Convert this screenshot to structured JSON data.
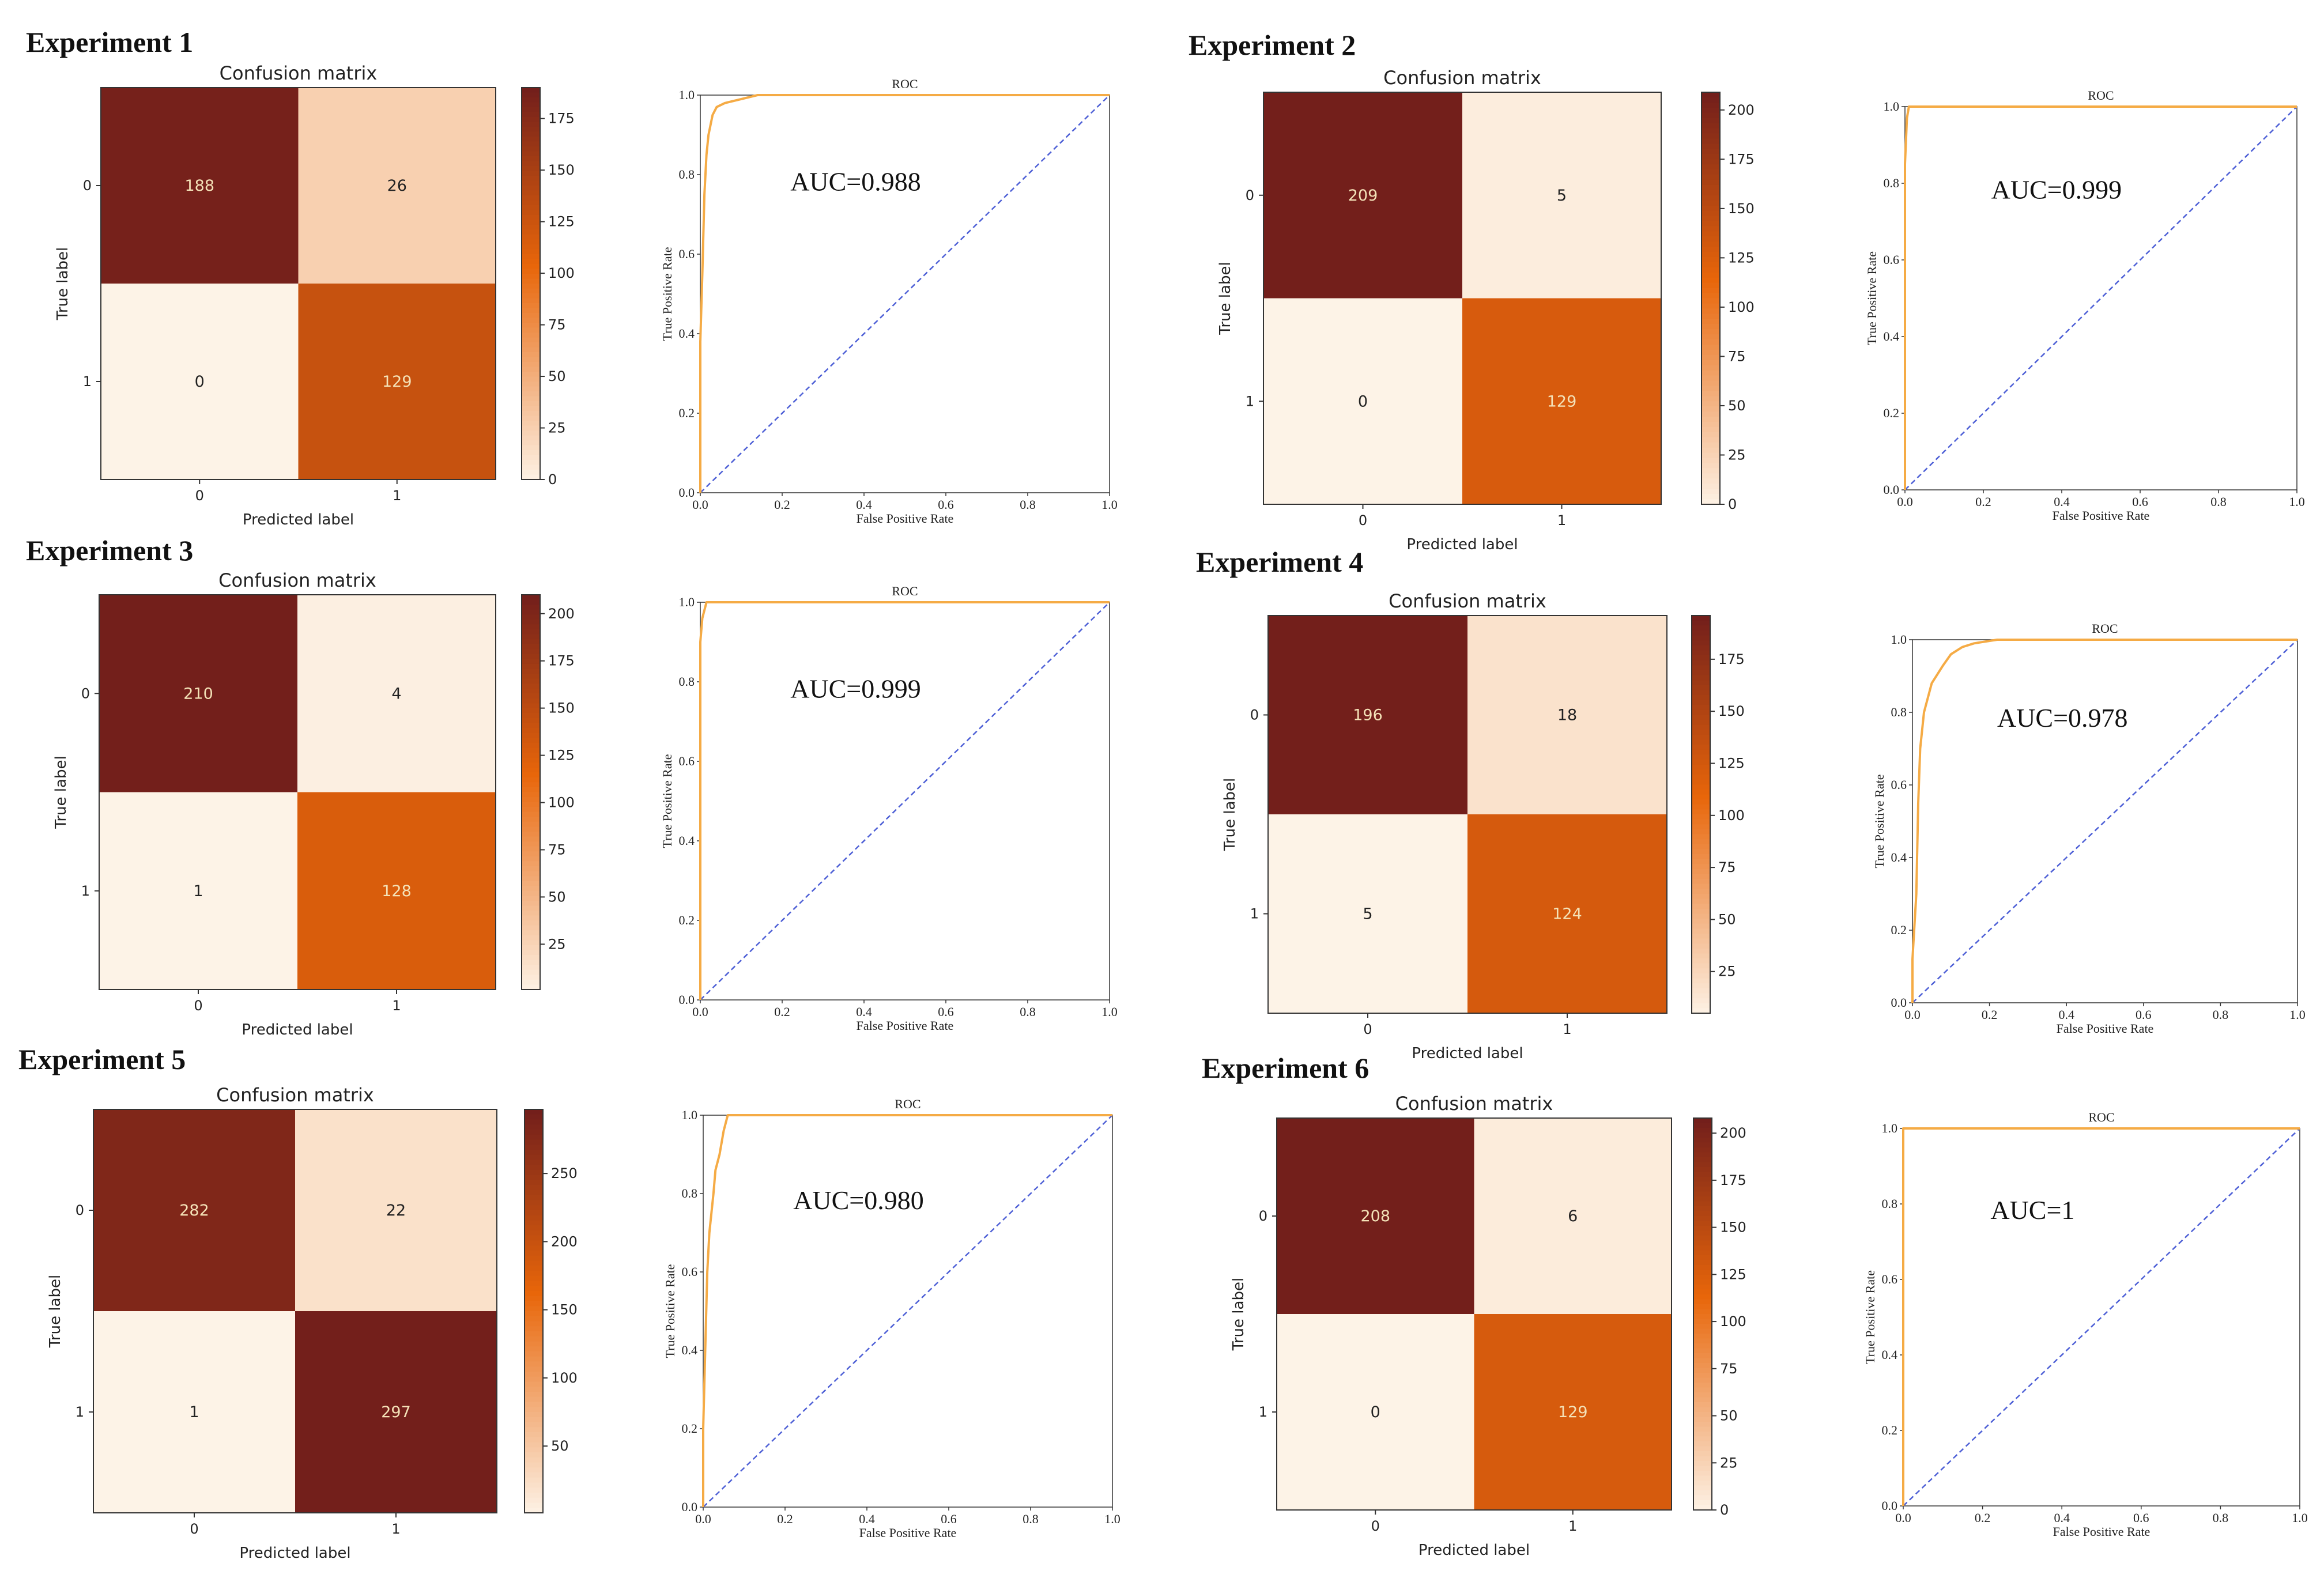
{
  "colors": {
    "cmap_low": "#fdf3e7",
    "cmap_mid": "#e8660a",
    "cmap_high": "#731f1b",
    "roc_curve": "#f5ab45",
    "diagonal": "#4d5fd6",
    "axis": "#333333",
    "text_light": "#f4e2b8",
    "text_dark": "#222222"
  },
  "chart_data": [
    {
      "type": "heatmap",
      "experiment": "Experiment 1",
      "title": "Confusion matrix",
      "xlabel": "Predicted label",
      "ylabel": "True label",
      "x_tick_labels": [
        "0",
        "1"
      ],
      "y_tick_labels": [
        "0",
        "1"
      ],
      "matrix": [
        [
          188,
          26
        ],
        [
          0,
          129
        ]
      ],
      "colorbar_ticks": [
        0,
        25,
        50,
        75,
        100,
        125,
        150,
        175
      ],
      "colorbar_range": [
        0,
        190
      ]
    },
    {
      "type": "line",
      "experiment": "Experiment 1",
      "title": "ROC",
      "xlabel": "False Positive Rate",
      "ylabel": "True Positive Rate",
      "annotation": "AUC=0.988",
      "xlim": [
        0,
        1
      ],
      "ylim": [
        0,
        1
      ],
      "x_ticks": [
        "0.0",
        "0.2",
        "0.4",
        "0.6",
        "0.8",
        "1.0"
      ],
      "y_ticks": [
        "0.0",
        "0.2",
        "0.4",
        "0.6",
        "0.8",
        "1.0"
      ],
      "roc_points": [
        [
          0,
          0
        ],
        [
          0,
          0.38
        ],
        [
          0.005,
          0.55
        ],
        [
          0.01,
          0.75
        ],
        [
          0.015,
          0.85
        ],
        [
          0.02,
          0.9
        ],
        [
          0.03,
          0.95
        ],
        [
          0.04,
          0.97
        ],
        [
          0.06,
          0.98
        ],
        [
          0.1,
          0.99
        ],
        [
          0.14,
          1.0
        ],
        [
          1,
          1
        ]
      ],
      "diagonal": [
        [
          0,
          0
        ],
        [
          1,
          1
        ]
      ]
    },
    {
      "type": "heatmap",
      "experiment": "Experiment 2",
      "title": "Confusion matrix",
      "xlabel": "Predicted label",
      "ylabel": "True label",
      "x_tick_labels": [
        "0",
        "1"
      ],
      "y_tick_labels": [
        "0",
        "1"
      ],
      "matrix": [
        [
          209,
          5
        ],
        [
          0,
          129
        ]
      ],
      "colorbar_ticks": [
        0,
        25,
        50,
        75,
        100,
        125,
        150,
        175,
        200
      ],
      "colorbar_range": [
        0,
        209
      ]
    },
    {
      "type": "line",
      "experiment": "Experiment 2",
      "title": "ROC",
      "xlabel": "False Positive Rate",
      "ylabel": "True Positive Rate",
      "annotation": "AUC=0.999",
      "xlim": [
        0,
        1
      ],
      "ylim": [
        0,
        1
      ],
      "x_ticks": [
        "0.0",
        "0.2",
        "0.4",
        "0.6",
        "0.8",
        "1.0"
      ],
      "y_ticks": [
        "0.0",
        "0.2",
        "0.4",
        "0.6",
        "0.8",
        "1.0"
      ],
      "roc_points": [
        [
          0,
          0
        ],
        [
          0,
          0.85
        ],
        [
          0.005,
          0.97
        ],
        [
          0.01,
          1.0
        ],
        [
          1,
          1
        ]
      ],
      "diagonal": [
        [
          0,
          0
        ],
        [
          1,
          1
        ]
      ]
    },
    {
      "type": "heatmap",
      "experiment": "Experiment 3",
      "title": "Confusion matrix",
      "xlabel": "Predicted label",
      "ylabel": "True label",
      "x_tick_labels": [
        "0",
        "1"
      ],
      "y_tick_labels": [
        "0",
        "1"
      ],
      "matrix": [
        [
          210,
          4
        ],
        [
          1,
          128
        ]
      ],
      "colorbar_ticks": [
        25,
        50,
        75,
        100,
        125,
        150,
        175,
        200
      ],
      "colorbar_range": [
        1,
        210
      ]
    },
    {
      "type": "line",
      "experiment": "Experiment 3",
      "title": "ROC",
      "xlabel": "False Positive Rate",
      "ylabel": "True Positive Rate",
      "annotation": "AUC=0.999",
      "xlim": [
        0,
        1
      ],
      "ylim": [
        0,
        1
      ],
      "x_ticks": [
        "0.0",
        "0.2",
        "0.4",
        "0.6",
        "0.8",
        "1.0"
      ],
      "y_ticks": [
        "0.0",
        "0.2",
        "0.4",
        "0.6",
        "0.8",
        "1.0"
      ],
      "roc_points": [
        [
          0,
          0
        ],
        [
          0,
          0.9
        ],
        [
          0.005,
          0.96
        ],
        [
          0.015,
          1.0
        ],
        [
          1,
          1
        ]
      ],
      "diagonal": [
        [
          0,
          0
        ],
        [
          1,
          1
        ]
      ]
    },
    {
      "type": "heatmap",
      "experiment": "Experiment 4",
      "title": "Confusion matrix",
      "xlabel": "Predicted label",
      "ylabel": "True label",
      "x_tick_labels": [
        "0",
        "1"
      ],
      "y_tick_labels": [
        "0",
        "1"
      ],
      "matrix": [
        [
          196,
          18
        ],
        [
          5,
          124
        ]
      ],
      "colorbar_ticks": [
        25,
        50,
        75,
        100,
        125,
        150,
        175
      ],
      "colorbar_range": [
        5,
        196
      ]
    },
    {
      "type": "line",
      "experiment": "Experiment 4",
      "title": "ROC",
      "xlabel": "False Positive Rate",
      "ylabel": "True Positive Rate",
      "annotation": "AUC=0.978",
      "xlim": [
        0,
        1
      ],
      "ylim": [
        0,
        1
      ],
      "x_ticks": [
        "0.0",
        "0.2",
        "0.4",
        "0.6",
        "0.8",
        "1.0"
      ],
      "y_ticks": [
        "0.0",
        "0.2",
        "0.4",
        "0.6",
        "0.8",
        "1.0"
      ],
      "roc_points": [
        [
          0,
          0
        ],
        [
          0,
          0.12
        ],
        [
          0.01,
          0.3
        ],
        [
          0.015,
          0.55
        ],
        [
          0.02,
          0.7
        ],
        [
          0.03,
          0.8
        ],
        [
          0.05,
          0.88
        ],
        [
          0.08,
          0.93
        ],
        [
          0.1,
          0.96
        ],
        [
          0.13,
          0.98
        ],
        [
          0.16,
          0.99
        ],
        [
          0.22,
          1.0
        ],
        [
          1,
          1
        ]
      ],
      "diagonal": [
        [
          0,
          0
        ],
        [
          1,
          1
        ]
      ]
    },
    {
      "type": "heatmap",
      "experiment": "Experiment 5",
      "title": "Confusion matrix",
      "xlabel": "Predicted label",
      "ylabel": "True label",
      "x_tick_labels": [
        "0",
        "1"
      ],
      "y_tick_labels": [
        "0",
        "1"
      ],
      "matrix": [
        [
          282,
          22
        ],
        [
          1,
          297
        ]
      ],
      "colorbar_ticks": [
        50,
        100,
        150,
        200,
        250
      ],
      "colorbar_range": [
        1,
        297
      ]
    },
    {
      "type": "line",
      "experiment": "Experiment 5",
      "title": "ROC",
      "xlabel": "False Positive Rate",
      "ylabel": "True Positive Rate",
      "annotation": "AUC=0.980",
      "xlim": [
        0,
        1
      ],
      "ylim": [
        0,
        1
      ],
      "x_ticks": [
        "0.0",
        "0.2",
        "0.4",
        "0.6",
        "0.8",
        "1.0"
      ],
      "y_ticks": [
        "0.0",
        "0.2",
        "0.4",
        "0.6",
        "0.8",
        "1.0"
      ],
      "roc_points": [
        [
          0,
          0
        ],
        [
          0,
          0.2
        ],
        [
          0.005,
          0.4
        ],
        [
          0.01,
          0.6
        ],
        [
          0.015,
          0.7
        ],
        [
          0.025,
          0.8
        ],
        [
          0.03,
          0.86
        ],
        [
          0.04,
          0.9
        ],
        [
          0.05,
          0.96
        ],
        [
          0.06,
          1.0
        ],
        [
          1,
          1
        ]
      ],
      "diagonal": [
        [
          0,
          0
        ],
        [
          1,
          1
        ]
      ]
    },
    {
      "type": "heatmap",
      "experiment": "Experiment 6",
      "title": "Confusion matrix",
      "xlabel": "Predicted label",
      "ylabel": "True label",
      "x_tick_labels": [
        "0",
        "1"
      ],
      "y_tick_labels": [
        "0",
        "1"
      ],
      "matrix": [
        [
          208,
          6
        ],
        [
          0,
          129
        ]
      ],
      "colorbar_ticks": [
        0,
        25,
        50,
        75,
        100,
        125,
        150,
        175,
        200
      ],
      "colorbar_range": [
        0,
        208
      ]
    },
    {
      "type": "line",
      "experiment": "Experiment 6",
      "title": "ROC",
      "xlabel": "False Positive Rate",
      "ylabel": "True Positive Rate",
      "annotation": "AUC=1",
      "xlim": [
        0,
        1
      ],
      "ylim": [
        0,
        1
      ],
      "x_ticks": [
        "0.0",
        "0.2",
        "0.4",
        "0.6",
        "0.8",
        "1.0"
      ],
      "y_ticks": [
        "0.0",
        "0.2",
        "0.4",
        "0.6",
        "0.8",
        "1.0"
      ],
      "roc_points": [
        [
          0,
          0
        ],
        [
          0,
          1.0
        ],
        [
          1,
          1
        ]
      ],
      "diagonal": [
        [
          0,
          0
        ],
        [
          1,
          1
        ]
      ]
    }
  ]
}
